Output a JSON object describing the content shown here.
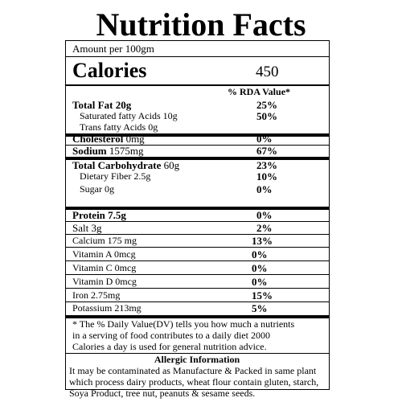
{
  "title": "Nutrition Facts",
  "amount_per": "Amount per 100gm",
  "calories": {
    "label": "Calories",
    "value": "450"
  },
  "rda_header": "% RDA Value*",
  "rows": [
    {
      "key": "total_fat",
      "label": "Total Fat 20g",
      "pct": "25%"
    },
    {
      "key": "sat_fat",
      "label": "Saturated fatty Acids 10g",
      "pct": "50%"
    },
    {
      "key": "trans_fat",
      "label": "Trans fatty Acids 0g",
      "pct": ""
    },
    {
      "key": "cholesterol",
      "label": "Cholesterol",
      "amount": "0mg",
      "pct": "0%"
    },
    {
      "key": "sodium",
      "label": "Sodium",
      "amount": "1575mg",
      "pct": "67%"
    },
    {
      "key": "total_carb",
      "label": "Total Carbohydrate",
      "amount": "60g",
      "pct": "23%"
    },
    {
      "key": "fiber",
      "label": "Dietary Fiber 2.5g",
      "pct": "10%"
    },
    {
      "key": "sugar",
      "label": "Sugar 0g",
      "pct": "0%"
    },
    {
      "key": "protein",
      "label": "Protein 7.5g",
      "pct": "0%"
    },
    {
      "key": "salt",
      "label": "Salt 3g",
      "pct": "2%"
    },
    {
      "key": "calcium",
      "label": "Calcium 175 mg",
      "pct": "13%"
    },
    {
      "key": "vit_a",
      "label": "Vitamin A 0mcg",
      "pct": "0%"
    },
    {
      "key": "vit_c",
      "label": "Vitamin C 0mcg",
      "pct": "0%"
    },
    {
      "key": "vit_d",
      "label": "Vitamin D 0mcg",
      "pct": "0%"
    },
    {
      "key": "iron",
      "label": "Iron 2.75mg",
      "pct": "15%"
    },
    {
      "key": "potassium",
      "label": "Potassium 213mg",
      "pct": "5%"
    }
  ],
  "footnote": [
    "* The % Daily Value(DV) tells you how much a nutrients",
    "in a serving of food contributes to a daily diet 2000",
    "Calories a day is used for general nutrition advice."
  ],
  "allergic": {
    "heading": "Allergic Information",
    "lines": [
      "It may be contaminated as Manufacture & Packed in same plant",
      "which process dairy products, wheat flour contain gluten, starch,",
      "Soya Product, tree nut, peanuts & sesame seeds."
    ]
  }
}
